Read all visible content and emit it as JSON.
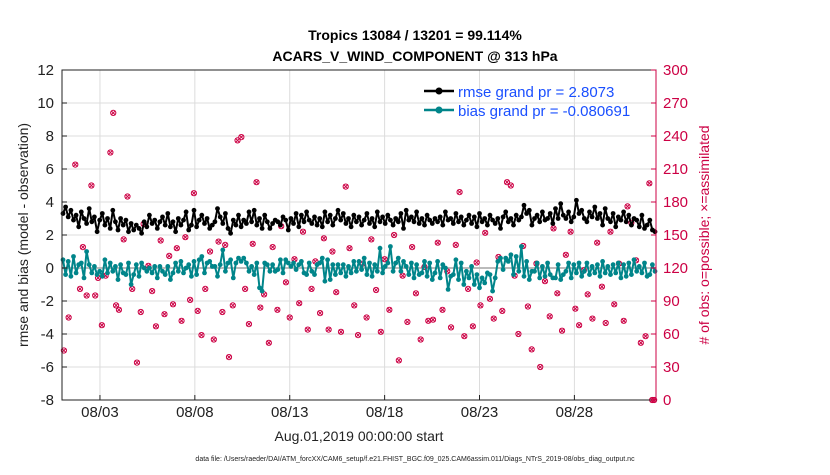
{
  "chart_data": {
    "type": "line",
    "title_line1": "Tropics 13084 / 13201 = 99.114%",
    "title_line2": "ACARS_V_WIND_COMPONENT @ 313 hPa",
    "xlabel": "Aug.01,2019 00:00:00 start",
    "ylabel_left": "rmse and bias (model - observation)",
    "ylabel_right": "# of obs: o=possible; ×=assimilated",
    "footer": "data file: /Users/raeder/DAI/ATM_forcXX/CAM6_setup/f.e21.FHIST_BGC.f09_025.CAM6assim.011/Diags_NTrS_2019-08/obs_diag_output.nc",
    "xlim": [
      1.0,
      32.3
    ],
    "ylim_left": [
      -8,
      12
    ],
    "ylim_right": [
      0,
      300
    ],
    "left_ticks": [
      "-8",
      "-6",
      "-4",
      "-2",
      "0",
      "2",
      "4",
      "6",
      "8",
      "10",
      "12"
    ],
    "right_ticks": [
      "0",
      "30",
      "60",
      "90",
      "120",
      "150",
      "180",
      "210",
      "240",
      "270",
      "300"
    ],
    "x_ticks": [
      {
        "x": 3,
        "label": "08/03"
      },
      {
        "x": 8,
        "label": "08/08"
      },
      {
        "x": 13,
        "label": "08/13"
      },
      {
        "x": 18,
        "label": "08/18"
      },
      {
        "x": 23,
        "label": "08/23"
      },
      {
        "x": 28,
        "label": "08/28"
      }
    ],
    "colors": {
      "rmse": "#000000",
      "bias": "#00858a",
      "obs": "#cc0044",
      "legend_text": "#1a4fff",
      "zero_line": "#bbbbbb",
      "grid": "#dcdcdc"
    },
    "series": [
      {
        "name": "rmse grand pr = 2.8073",
        "axis": "left",
        "values": [
          3.3,
          3.7,
          3.1,
          3.5,
          2.9,
          3.2,
          2.5,
          3.4,
          3.0,
          2.7,
          3.6,
          2.8,
          3.1,
          2.2,
          2.9,
          3.3,
          2.6,
          3.0,
          2.4,
          3.5,
          2.8,
          2.3,
          3.0,
          2.6,
          2.9,
          2.2,
          2.7,
          2.3,
          2.6,
          2.4,
          2.1,
          2.8,
          2.5,
          3.2,
          2.7,
          2.9,
          2.4,
          2.8,
          3.1,
          2.6,
          3.3,
          2.5,
          2.8,
          2.2,
          3.0,
          2.6,
          2.9,
          3.4,
          2.3,
          2.6,
          3.5,
          2.5,
          2.9,
          3.2,
          2.7,
          3.0,
          2.4,
          2.6,
          2.8,
          3.6,
          3.1,
          2.7,
          3.3,
          2.4,
          2.1,
          2.9,
          2.6,
          3.2,
          2.5,
          2.9,
          2.7,
          3.4,
          2.8,
          3.5,
          2.6,
          3.0,
          2.4,
          3.2,
          2.8,
          2.4,
          2.7,
          2.9,
          2.8,
          2.6,
          3.1,
          2.9,
          2.3,
          3.0,
          2.7,
          3.3,
          2.5,
          3.2,
          2.8,
          3.4,
          2.9,
          2.7,
          3.1,
          2.6,
          3.0,
          2.5,
          3.4,
          2.8,
          3.2,
          2.6,
          3.0,
          3.5,
          2.9,
          3.3,
          2.7,
          3.0,
          2.5,
          3.2,
          2.8,
          3.1,
          2.6,
          2.9,
          3.3,
          2.7,
          3.0,
          2.5,
          3.4,
          2.8,
          3.1,
          2.7,
          3.2,
          2.9,
          2.6,
          3.0,
          2.8,
          3.3,
          2.4,
          3.5,
          2.9,
          3.1,
          2.8,
          3.4,
          2.7,
          3.0,
          2.6,
          3.2,
          2.9,
          2.7,
          3.0,
          2.8,
          3.1,
          2.6,
          3.4,
          2.9,
          3.0,
          2.7,
          3.3,
          2.8,
          3.1,
          2.6,
          2.9,
          3.2,
          2.7,
          3.1,
          2.5,
          3.3,
          2.8,
          3.0,
          2.6,
          3.2,
          2.9,
          2.7,
          3.0,
          2.4,
          3.1,
          3.4,
          2.8,
          3.0,
          2.6,
          3.2,
          2.9,
          3.1,
          3.8,
          3.3,
          3.5,
          2.6,
          3.0,
          3.2,
          2.8,
          3.4,
          2.9,
          3.0,
          3.3,
          2.7,
          3.6,
          3.0,
          3.9,
          3.2,
          3.0,
          3.4,
          2.8,
          3.1,
          4.1,
          3.3,
          3.5,
          3.0,
          2.8,
          3.4,
          3.1,
          3.7,
          3.0,
          3.3,
          2.6,
          3.6,
          3.0,
          2.8,
          3.3,
          2.5,
          3.1,
          2.9,
          3.4,
          2.8,
          3.2,
          2.6,
          3.0,
          2.9,
          2.5,
          3.2,
          2.4,
          2.6,
          2.9,
          2.3,
          2.2
        ]
      },
      {
        "name": "bias grand pr = -0.080691",
        "axis": "left",
        "values": [
          0.5,
          -0.4,
          0.4,
          -0.5,
          0.7,
          -0.3,
          0.2,
          0.3,
          -0.6,
          1.0,
          0.2,
          -0.3,
          0.1,
          -0.4,
          -0.2,
          -0.5,
          0.5,
          -0.3,
          0.3,
          -0.2,
          0.1,
          -0.7,
          0.2,
          -0.3,
          -0.4,
          0.3,
          -1.0,
          -0.4,
          0.2,
          -0.5,
          0.3,
          0.0,
          -0.2,
          0.0,
          -0.3,
          0.1,
          -0.6,
          0.1,
          -0.2,
          -0.4,
          0.1,
          -0.7,
          -0.3,
          0.3,
          -0.2,
          0.4,
          -0.3,
          0.0,
          0.2,
          -0.5,
          0.4,
          -0.4,
          0.5,
          0.7,
          -0.3,
          0.3,
          0.4,
          0.1,
          0.1,
          -0.5,
          0.2,
          1.1,
          -0.2,
          0.3,
          0.5,
          -0.6,
          0.3,
          0.6,
          0.4,
          0.6,
          0.3,
          -0.2,
          0.1,
          -0.4,
          0.3,
          -1.2,
          -1.4,
          0.3,
          0.2,
          -0.2,
          0.2,
          -0.2,
          -0.1,
          0.5,
          -0.3,
          0.5,
          0.3,
          0.1,
          0.3,
          -0.1,
          0.2,
          0.4,
          -0.3,
          -0.4,
          0.3,
          -0.2,
          -0.4,
          0.2,
          0.3,
          0.6,
          -0.8,
          0.5,
          -0.7,
          0.2,
          -0.4,
          0.2,
          -0.3,
          0.2,
          -0.5,
          0.1,
          -0.3,
          0.4,
          -0.2,
          0.4,
          -0.1,
          0.6,
          -0.4,
          0.3,
          -0.5,
          0.2,
          -0.2,
          1.2,
          -0.3,
          0.1,
          0.3,
          1.3,
          -0.2,
          0.3,
          0.6,
          -0.2,
          0.4,
          0.1,
          -0.4,
          0.3,
          -0.6,
          0.2,
          -0.4,
          -0.3,
          0.4,
          -0.5,
          0.3,
          -0.7,
          -0.3,
          0.4,
          -0.6,
          0.2,
          0.0,
          -1.3,
          -0.5,
          -0.4,
          0.5,
          -0.7,
          0.3,
          -1.0,
          -0.2,
          -0.6,
          0.1,
          -1.0,
          -0.4,
          -1.2,
          -0.6,
          -0.9,
          -0.3,
          -0.4,
          -1.4,
          -0.6,
          0.4,
          0.6,
          -0.1,
          0.6,
          0.4,
          0.8,
          -0.4,
          0.7,
          -0.2,
          1.3,
          -0.5,
          0.4,
          -0.7,
          -0.2,
          -0.2,
          0.3,
          -0.6,
          0.1,
          -0.5,
          0.3,
          -0.4,
          -0.6,
          -0.6,
          0.2,
          -0.7,
          -0.4,
          -0.2,
          0.3,
          -0.6,
          0.2,
          -0.3,
          0.3,
          -0.5,
          -0.2,
          0.3,
          -0.4,
          0.1,
          -0.3,
          0.2,
          -0.5,
          0.4,
          -0.3,
          0.1,
          -0.4,
          0.2,
          -0.3,
          0.3,
          -0.6,
          0.2,
          -0.5,
          0.3,
          -0.4,
          0.5,
          -0.2,
          0.1,
          -0.3,
          0.3,
          -0.5,
          -0.4,
          0.2,
          -0.2
        ]
      }
    ],
    "obs_points": [
      {
        "t": 1.1,
        "v": 45
      },
      {
        "t": 1.35,
        "v": 75
      },
      {
        "t": 1.7,
        "v": 214
      },
      {
        "t": 1.95,
        "v": 101
      },
      {
        "t": 2.1,
        "v": 139
      },
      {
        "t": 2.3,
        "v": 95
      },
      {
        "t": 2.55,
        "v": 195
      },
      {
        "t": 2.75,
        "v": 95
      },
      {
        "t": 2.9,
        "v": 111
      },
      {
        "t": 3.1,
        "v": 68
      },
      {
        "t": 3.3,
        "v": 113
      },
      {
        "t": 3.55,
        "v": 225
      },
      {
        "t": 3.7,
        "v": 261
      },
      {
        "t": 3.85,
        "v": 86
      },
      {
        "t": 4.0,
        "v": 82
      },
      {
        "t": 4.25,
        "v": 146
      },
      {
        "t": 4.45,
        "v": 185
      },
      {
        "t": 4.7,
        "v": 101
      },
      {
        "t": 4.95,
        "v": 34
      },
      {
        "t": 5.15,
        "v": 80
      },
      {
        "t": 5.3,
        "v": 160
      },
      {
        "t": 5.55,
        "v": 122
      },
      {
        "t": 5.75,
        "v": 99
      },
      {
        "t": 5.95,
        "v": 67
      },
      {
        "t": 6.2,
        "v": 145
      },
      {
        "t": 6.4,
        "v": 78
      },
      {
        "t": 6.65,
        "v": 131
      },
      {
        "t": 6.85,
        "v": 87
      },
      {
        "t": 7.05,
        "v": 138
      },
      {
        "t": 7.3,
        "v": 72
      },
      {
        "t": 7.5,
        "v": 148
      },
      {
        "t": 7.75,
        "v": 91
      },
      {
        "t": 7.95,
        "v": 188
      },
      {
        "t": 8.15,
        "v": 81
      },
      {
        "t": 8.35,
        "v": 59
      },
      {
        "t": 8.55,
        "v": 101
      },
      {
        "t": 8.8,
        "v": 135
      },
      {
        "t": 9.0,
        "v": 55
      },
      {
        "t": 9.25,
        "v": 144
      },
      {
        "t": 9.45,
        "v": 80
      },
      {
        "t": 9.6,
        "v": 141
      },
      {
        "t": 9.8,
        "v": 39
      },
      {
        "t": 10.0,
        "v": 86
      },
      {
        "t": 10.25,
        "v": 236
      },
      {
        "t": 10.45,
        "v": 239
      },
      {
        "t": 10.65,
        "v": 101
      },
      {
        "t": 10.85,
        "v": 69
      },
      {
        "t": 11.05,
        "v": 142
      },
      {
        "t": 11.25,
        "v": 198
      },
      {
        "t": 11.45,
        "v": 84
      },
      {
        "t": 11.65,
        "v": 96
      },
      {
        "t": 11.9,
        "v": 52
      },
      {
        "t": 12.1,
        "v": 139
      },
      {
        "t": 12.35,
        "v": 82
      },
      {
        "t": 12.55,
        "v": 158
      },
      {
        "t": 12.8,
        "v": 107
      },
      {
        "t": 13.0,
        "v": 75
      },
      {
        "t": 13.25,
        "v": 128
      },
      {
        "t": 13.5,
        "v": 88
      },
      {
        "t": 13.7,
        "v": 153
      },
      {
        "t": 13.95,
        "v": 64
      },
      {
        "t": 14.15,
        "v": 101
      },
      {
        "t": 14.35,
        "v": 126
      },
      {
        "t": 14.6,
        "v": 79
      },
      {
        "t": 14.8,
        "v": 147
      },
      {
        "t": 15.05,
        "v": 64
      },
      {
        "t": 15.25,
        "v": 135
      },
      {
        "t": 15.45,
        "v": 98
      },
      {
        "t": 15.7,
        "v": 62
      },
      {
        "t": 15.95,
        "v": 194
      },
      {
        "t": 16.15,
        "v": 138
      },
      {
        "t": 16.4,
        "v": 86
      },
      {
        "t": 16.6,
        "v": 59
      },
      {
        "t": 16.85,
        "v": 124
      },
      {
        "t": 17.05,
        "v": 75
      },
      {
        "t": 17.3,
        "v": 146
      },
      {
        "t": 17.55,
        "v": 100
      },
      {
        "t": 17.8,
        "v": 62
      },
      {
        "t": 18.0,
        "v": 128
      },
      {
        "t": 18.25,
        "v": 82
      },
      {
        "t": 18.5,
        "v": 150
      },
      {
        "t": 18.75,
        "v": 36
      },
      {
        "t": 18.95,
        "v": 113
      },
      {
        "t": 19.2,
        "v": 71
      },
      {
        "t": 19.45,
        "v": 139
      },
      {
        "t": 19.65,
        "v": 97
      },
      {
        "t": 19.9,
        "v": 55
      },
      {
        "t": 20.1,
        "v": 121
      },
      {
        "t": 20.3,
        "v": 72
      },
      {
        "t": 20.55,
        "v": 73
      },
      {
        "t": 20.8,
        "v": 143
      },
      {
        "t": 21.05,
        "v": 82
      },
      {
        "t": 21.3,
        "v": 117
      },
      {
        "t": 21.5,
        "v": 66
      },
      {
        "t": 21.75,
        "v": 141
      },
      {
        "t": 21.95,
        "v": 189
      },
      {
        "t": 22.2,
        "v": 58
      },
      {
        "t": 22.4,
        "v": 101
      },
      {
        "t": 22.65,
        "v": 67
      },
      {
        "t": 22.85,
        "v": 125
      },
      {
        "t": 23.05,
        "v": 86
      },
      {
        "t": 23.3,
        "v": 152
      },
      {
        "t": 23.55,
        "v": 92
      },
      {
        "t": 23.75,
        "v": 74
      },
      {
        "t": 24.0,
        "v": 130
      },
      {
        "t": 24.2,
        "v": 81
      },
      {
        "t": 24.45,
        "v": 198
      },
      {
        "t": 24.65,
        "v": 195
      },
      {
        "t": 24.85,
        "v": 113
      },
      {
        "t": 25.05,
        "v": 60
      },
      {
        "t": 25.3,
        "v": 140
      },
      {
        "t": 25.55,
        "v": 85
      },
      {
        "t": 25.75,
        "v": 46
      },
      {
        "t": 26.0,
        "v": 124
      },
      {
        "t": 26.2,
        "v": 30
      },
      {
        "t": 26.45,
        "v": 108
      },
      {
        "t": 26.7,
        "v": 76
      },
      {
        "t": 26.9,
        "v": 156
      },
      {
        "t": 27.1,
        "v": 97
      },
      {
        "t": 27.35,
        "v": 63
      },
      {
        "t": 27.55,
        "v": 132
      },
      {
        "t": 27.8,
        "v": 153
      },
      {
        "t": 28.05,
        "v": 83
      },
      {
        "t": 28.25,
        "v": 68
      },
      {
        "t": 28.5,
        "v": 118
      },
      {
        "t": 28.7,
        "v": 96
      },
      {
        "t": 28.95,
        "v": 74
      },
      {
        "t": 29.2,
        "v": 143
      },
      {
        "t": 29.45,
        "v": 103
      },
      {
        "t": 29.65,
        "v": 70
      },
      {
        "t": 29.9,
        "v": 153
      },
      {
        "t": 30.1,
        "v": 87
      },
      {
        "t": 30.35,
        "v": 124
      },
      {
        "t": 30.6,
        "v": 72
      },
      {
        "t": 30.8,
        "v": 176
      },
      {
        "t": 31.0,
        "v": 161
      },
      {
        "t": 31.25,
        "v": 127
      },
      {
        "t": 31.5,
        "v": 52
      },
      {
        "t": 31.75,
        "v": 58
      },
      {
        "t": 31.95,
        "v": 197
      },
      {
        "t": 32.1,
        "v": 0
      },
      {
        "t": 32.2,
        "v": 0
      }
    ]
  }
}
